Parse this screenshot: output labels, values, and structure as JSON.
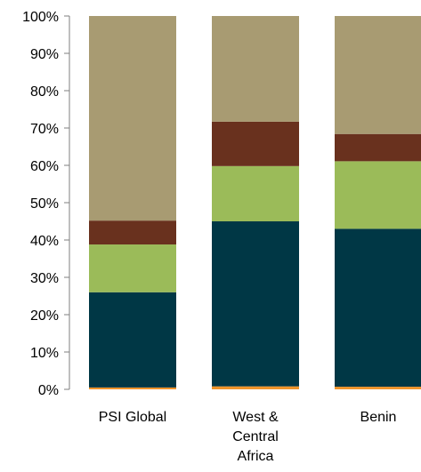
{
  "chart_data": {
    "type": "bar",
    "stacked": true,
    "percent": true,
    "categories": [
      [
        "PSI Global"
      ],
      [
        "West &",
        "Central",
        "Africa"
      ],
      [
        "Benin"
      ]
    ],
    "series": [
      {
        "color": "#f0952b",
        "values": [
          0.5,
          0.8,
          0.7
        ]
      },
      {
        "color": "#003745",
        "values": [
          25.5,
          44.2,
          42.3
        ]
      },
      {
        "color": "#9bbb59",
        "values": [
          12.8,
          14.8,
          18.1
        ]
      },
      {
        "color": "#69311e",
        "values": [
          6.4,
          11.9,
          7.3
        ]
      },
      {
        "color": "#a89b72",
        "values": [
          54.8,
          28.3,
          31.6
        ]
      }
    ],
    "ylim": [
      0,
      100
    ],
    "yticks": [
      "0%",
      "10%",
      "20%",
      "30%",
      "40%",
      "50%",
      "60%",
      "70%",
      "80%",
      "90%",
      "100%"
    ],
    "grid": false,
    "legend": "none"
  }
}
